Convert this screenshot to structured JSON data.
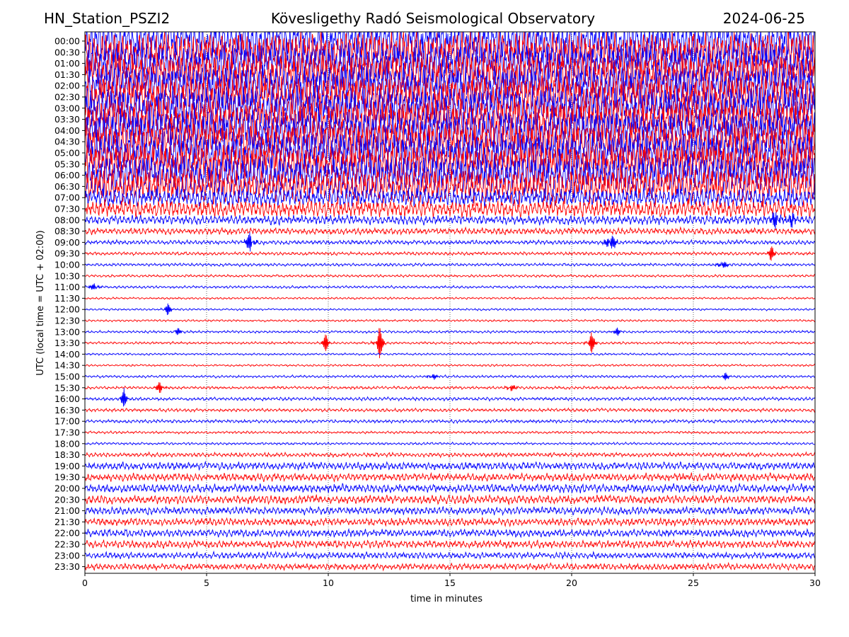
{
  "header": {
    "station": "HN_Station_PSZI2",
    "observatory": "Kövesligethy Radó Seismological Observatory",
    "date": "2024-06-25"
  },
  "chart_data": {
    "type": "line",
    "title": "Kövesligethy Radó Seismological Observatory",
    "xlabel": "time in minutes",
    "ylabel": "UTC (local time = UTC + 02:00)",
    "xlim": [
      0,
      30
    ],
    "x_ticks": [
      "0",
      "5",
      "10",
      "15",
      "20",
      "25",
      "30"
    ],
    "x_tick_values": [
      0,
      5,
      10,
      15,
      20,
      25,
      30
    ],
    "grid": "vertical dotted lines at 5-minute ticks",
    "row_labels": [
      "00:00",
      "00:30",
      "01:00",
      "01:30",
      "02:00",
      "02:30",
      "03:00",
      "03:30",
      "04:00",
      "04:30",
      "05:00",
      "05:30",
      "06:00",
      "06:30",
      "07:00",
      "07:30",
      "08:00",
      "08:30",
      "09:00",
      "09:30",
      "10:00",
      "10:30",
      "11:00",
      "11:30",
      "12:00",
      "12:30",
      "13:00",
      "13:30",
      "14:00",
      "14:30",
      "15:00",
      "15:30",
      "16:00",
      "16:30",
      "17:00",
      "17:30",
      "18:00",
      "18:30",
      "19:00",
      "19:30",
      "20:00",
      "20:30",
      "21:00",
      "21:30",
      "22:00",
      "22:30",
      "23:00",
      "23:30"
    ],
    "row_colors": [
      "#0000ff",
      "#ff0000"
    ],
    "relative_amplitude": [
      1.0,
      1.0,
      1.0,
      1.0,
      1.0,
      1.0,
      1.0,
      1.0,
      1.0,
      1.0,
      1.0,
      1.0,
      0.95,
      0.8,
      0.45,
      0.4,
      0.22,
      0.15,
      0.1,
      0.08,
      0.07,
      0.06,
      0.06,
      0.05,
      0.05,
      0.05,
      0.06,
      0.06,
      0.05,
      0.05,
      0.06,
      0.07,
      0.08,
      0.08,
      0.08,
      0.06,
      0.06,
      0.1,
      0.18,
      0.18,
      0.2,
      0.2,
      0.18,
      0.18,
      0.18,
      0.18,
      0.15,
      0.15
    ],
    "events": [
      {
        "row": "09:00",
        "minute": 6.8,
        "strength": 1.0
      },
      {
        "row": "09:00",
        "minute": 21.6,
        "strength": 1.2
      },
      {
        "row": "09:30",
        "minute": 28.2,
        "strength": 0.5
      },
      {
        "row": "10:00",
        "minute": 26.2,
        "strength": 0.5
      },
      {
        "row": "11:00",
        "minute": 0.4,
        "strength": 0.4
      },
      {
        "row": "12:00",
        "minute": 3.4,
        "strength": 0.4
      },
      {
        "row": "13:00",
        "minute": 3.8,
        "strength": 0.3
      },
      {
        "row": "13:00",
        "minute": 21.9,
        "strength": 0.3
      },
      {
        "row": "13:30",
        "minute": 9.9,
        "strength": 0.6
      },
      {
        "row": "13:30",
        "minute": 12.1,
        "strength": 1.2
      },
      {
        "row": "13:30",
        "minute": 20.8,
        "strength": 0.8
      },
      {
        "row": "15:00",
        "minute": 14.3,
        "strength": 0.3
      },
      {
        "row": "15:00",
        "minute": 26.3,
        "strength": 0.3
      },
      {
        "row": "15:30",
        "minute": 3.1,
        "strength": 0.5
      },
      {
        "row": "15:30",
        "minute": 17.5,
        "strength": 0.4
      },
      {
        "row": "16:00",
        "minute": 1.6,
        "strength": 0.6
      },
      {
        "row": "08:00",
        "minute": 28.4,
        "strength": 1.0
      },
      {
        "row": "08:00",
        "minute": 29.0,
        "strength": 0.7
      }
    ]
  }
}
